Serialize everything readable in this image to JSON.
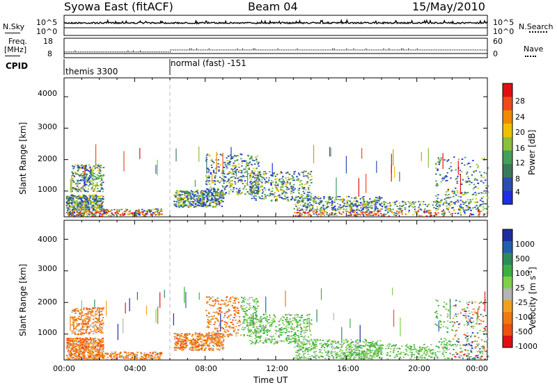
{
  "header": {
    "title": "Syowa East (fitACF)",
    "beam": "Beam 04",
    "date": "15/May/2010"
  },
  "colors": {
    "power": [
      "#1e2ee0",
      "#2a4fb0",
      "#3a7a5a",
      "#43a05a",
      "#8cbf3a",
      "#f0c000",
      "#f08a00",
      "#f04a1a",
      "#e01010"
    ],
    "velocity": [
      "#1e2ea0",
      "#2060b0",
      "#2f8a5a",
      "#3cb040",
      "#7ed04a",
      "#b4b4b4",
      "#f0a020",
      "#f07810",
      "#f05010",
      "#e01010"
    ]
  },
  "chart_data": [
    {
      "name": "noise-panel",
      "type": "line",
      "ylabel_left": "N.Sky",
      "ylabel_right": "N.Search",
      "yticks_left": [
        "10^5",
        "10^0"
      ],
      "yticks_right": [
        "10^5",
        "10^0"
      ],
      "level_log10": 4.2
    },
    {
      "name": "frequency-panel",
      "type": "scatter",
      "ylabel_left_top": "Freq.",
      "ylabel_left_bottom": "[MHz]",
      "ylabel_right": "Nave",
      "yticks_left": [
        "18",
        "8"
      ],
      "yticks_right": [
        "60",
        "0"
      ],
      "ylim": [
        8,
        18
      ],
      "segments": [
        {
          "x_start_hours": 0,
          "x_end_hours": 6,
          "freq_mhz": 11.0
        },
        {
          "x_start_hours": 6,
          "x_end_hours": 24,
          "freq_mhz": 12.0
        }
      ]
    },
    {
      "name": "cpid-panel",
      "type": "table",
      "label": "CPID",
      "modes": [
        {
          "start_hours": 0,
          "text": "themis 3300"
        },
        {
          "start_hours": 6,
          "text": "normal (fast) -151"
        }
      ]
    },
    {
      "name": "power-panel",
      "type": "heatmap",
      "ylabel": "Slant Range [km]",
      "ylim": [
        180,
        4600
      ],
      "yticks": [
        1000,
        2000,
        3000,
        4000
      ],
      "xlim": [
        0,
        24
      ],
      "colorbar": {
        "label": "Power [dB]",
        "range": [
          0,
          30
        ],
        "ticks": [
          4,
          8,
          12,
          16,
          20,
          24,
          28
        ]
      }
    },
    {
      "name": "velocity-panel",
      "type": "heatmap",
      "ylabel": "Slant Range [km]",
      "xlabel": "Time UT",
      "ylim": [
        180,
        4600
      ],
      "yticks": [
        1000,
        2000,
        3000,
        4000
      ],
      "xlim": [
        0,
        24
      ],
      "xticks": [
        "00:00",
        "04:00",
        "08:00",
        "12:00",
        "16:00",
        "20:00",
        "00:00"
      ],
      "colorbar": {
        "label": "Velocity [m s^-1]",
        "ticks": [
          1000,
          500,
          100,
          25,
          -25,
          -100,
          -500,
          -1000
        ]
      }
    }
  ]
}
